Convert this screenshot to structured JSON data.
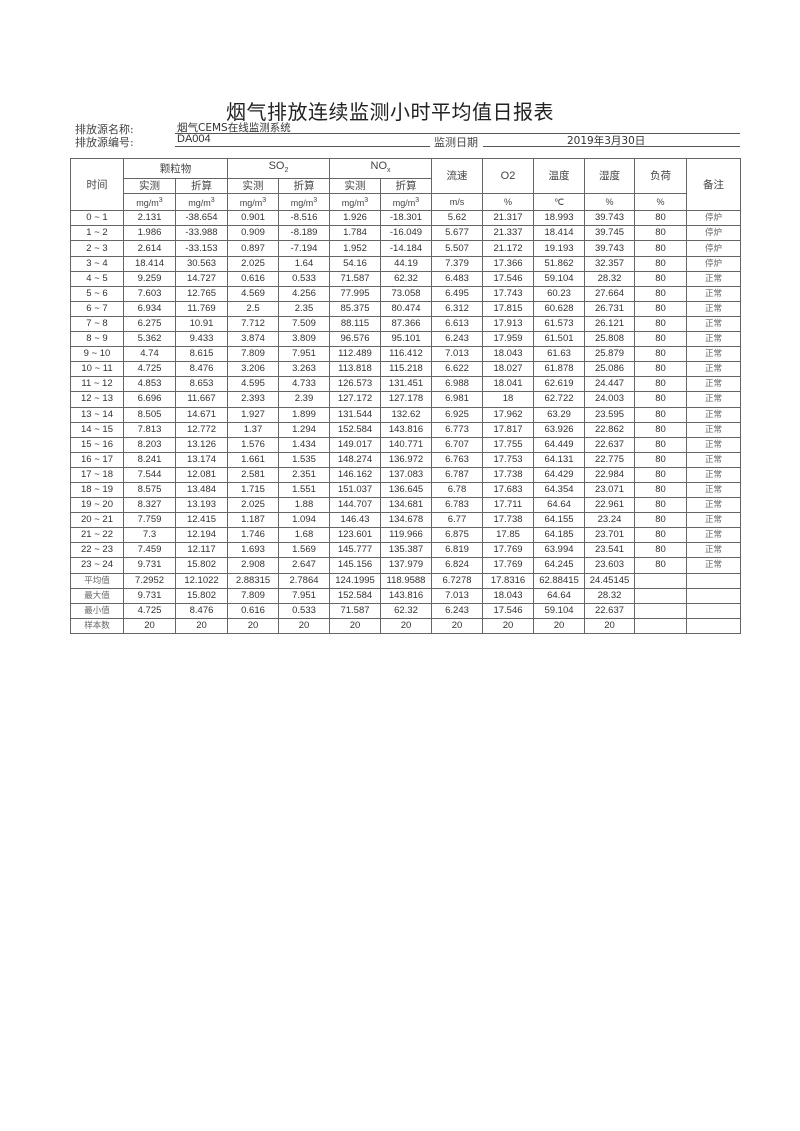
{
  "title": "烟气排放连续监测小时平均值日报表",
  "info": {
    "source_name_label": "排放源名称:",
    "source_name": "烟气CEMS在线监测系统",
    "source_id_label": "排放源编号:",
    "source_id": "DA004",
    "date_label": "监测日期",
    "date": "2019年3月30日"
  },
  "header": {
    "time": "时间",
    "particulate": "颗粒物",
    "so2": "SO",
    "so2_sub": "2",
    "nox": "NO",
    "nox_sub": "x",
    "measured": "实测",
    "converted": "折算",
    "conc_unit": "mg/m",
    "conc_unit_sup": "3",
    "flow": "流速",
    "flow_unit": "m/s",
    "o2": "O2",
    "o2_unit": "%",
    "temp": "温度",
    "temp_unit": "℃",
    "humidity": "湿度",
    "humidity_unit": "%",
    "load": "负荷",
    "load_unit": "%",
    "remark": "备注"
  },
  "rows": [
    [
      "0 ~ 1",
      "2.131",
      "-38.654",
      "0.901",
      "-8.516",
      "1.926",
      "-18.301",
      "5.62",
      "21.317",
      "18.993",
      "39.743",
      "80",
      "停炉"
    ],
    [
      "1 ~ 2",
      "1.986",
      "-33.988",
      "0.909",
      "-8.189",
      "1.784",
      "-16.049",
      "5.677",
      "21.337",
      "18.414",
      "39.745",
      "80",
      "停炉"
    ],
    [
      "2 ~ 3",
      "2.614",
      "-33.153",
      "0.897",
      "-7.194",
      "1.952",
      "-14.184",
      "5.507",
      "21.172",
      "19.193",
      "39.743",
      "80",
      "停炉"
    ],
    [
      "3 ~ 4",
      "18.414",
      "30.563",
      "2.025",
      "1.64",
      "54.16",
      "44.19",
      "7.379",
      "17.366",
      "51.862",
      "32.357",
      "80",
      "停炉"
    ],
    [
      "4 ~ 5",
      "9.259",
      "14.727",
      "0.616",
      "0.533",
      "71.587",
      "62.32",
      "6.483",
      "17.546",
      "59.104",
      "28.32",
      "80",
      "正常"
    ],
    [
      "5 ~ 6",
      "7.603",
      "12.765",
      "4.569",
      "4.256",
      "77.995",
      "73.058",
      "6.495",
      "17.743",
      "60.23",
      "27.664",
      "80",
      "正常"
    ],
    [
      "6 ~ 7",
      "6.934",
      "11.769",
      "2.5",
      "2.35",
      "85.375",
      "80.474",
      "6.312",
      "17.815",
      "60.628",
      "26.731",
      "80",
      "正常"
    ],
    [
      "7 ~ 8",
      "6.275",
      "10.91",
      "7.712",
      "7.509",
      "88.115",
      "87.366",
      "6.613",
      "17.913",
      "61.573",
      "26.121",
      "80",
      "正常"
    ],
    [
      "8 ~ 9",
      "5.362",
      "9.433",
      "3.874",
      "3.809",
      "96.576",
      "95.101",
      "6.243",
      "17.959",
      "61.501",
      "25.808",
      "80",
      "正常"
    ],
    [
      "9 ~ 10",
      "4.74",
      "8.615",
      "7.809",
      "7.951",
      "112.489",
      "116.412",
      "7.013",
      "18.043",
      "61.63",
      "25.879",
      "80",
      "正常"
    ],
    [
      "10 ~ 11",
      "4.725",
      "8.476",
      "3.206",
      "3.263",
      "113.818",
      "115.218",
      "6.622",
      "18.027",
      "61.878",
      "25.086",
      "80",
      "正常"
    ],
    [
      "11 ~ 12",
      "4.853",
      "8.653",
      "4.595",
      "4.733",
      "126.573",
      "131.451",
      "6.988",
      "18.041",
      "62.619",
      "24.447",
      "80",
      "正常"
    ],
    [
      "12 ~ 13",
      "6.696",
      "11.667",
      "2.393",
      "2.39",
      "127.172",
      "127.178",
      "6.981",
      "18",
      "62.722",
      "24.003",
      "80",
      "正常"
    ],
    [
      "13 ~ 14",
      "8.505",
      "14.671",
      "1.927",
      "1.899",
      "131.544",
      "132.62",
      "6.925",
      "17.962",
      "63.29",
      "23.595",
      "80",
      "正常"
    ],
    [
      "14 ~ 15",
      "7.813",
      "12.772",
      "1.37",
      "1.294",
      "152.584",
      "143.816",
      "6.773",
      "17.817",
      "63.926",
      "22.862",
      "80",
      "正常"
    ],
    [
      "15 ~ 16",
      "8.203",
      "13.126",
      "1.576",
      "1.434",
      "149.017",
      "140.771",
      "6.707",
      "17.755",
      "64.449",
      "22.637",
      "80",
      "正常"
    ],
    [
      "16 ~ 17",
      "8.241",
      "13.174",
      "1.661",
      "1.535",
      "148.274",
      "136.972",
      "6.763",
      "17.753",
      "64.131",
      "22.775",
      "80",
      "正常"
    ],
    [
      "17 ~ 18",
      "7.544",
      "12.081",
      "2.581",
      "2.351",
      "146.162",
      "137.083",
      "6.787",
      "17.738",
      "64.429",
      "22.984",
      "80",
      "正常"
    ],
    [
      "18 ~ 19",
      "8.575",
      "13.484",
      "1.715",
      "1.551",
      "151.037",
      "136.645",
      "6.78",
      "17.683",
      "64.354",
      "23.071",
      "80",
      "正常"
    ],
    [
      "19 ~ 20",
      "8.327",
      "13.193",
      "2.025",
      "1.88",
      "144.707",
      "134.681",
      "6.783",
      "17.711",
      "64.64",
      "22.961",
      "80",
      "正常"
    ],
    [
      "20 ~ 21",
      "7.759",
      "12.415",
      "1.187",
      "1.094",
      "146.43",
      "134.678",
      "6.77",
      "17.738",
      "64.155",
      "23.24",
      "80",
      "正常"
    ],
    [
      "21 ~ 22",
      "7.3",
      "12.194",
      "1.746",
      "1.68",
      "123.601",
      "119.966",
      "6.875",
      "17.85",
      "64.185",
      "23.701",
      "80",
      "正常"
    ],
    [
      "22 ~ 23",
      "7.459",
      "12.117",
      "1.693",
      "1.569",
      "145.777",
      "135.387",
      "6.819",
      "17.769",
      "63.994",
      "23.541",
      "80",
      "正常"
    ],
    [
      "23 ~ 24",
      "9.731",
      "15.802",
      "2.908",
      "2.647",
      "145.156",
      "137.979",
      "6.824",
      "17.769",
      "64.245",
      "23.603",
      "80",
      "正常"
    ]
  ],
  "summary": [
    [
      "平均值",
      "7.2952",
      "12.1022",
      "2.88315",
      "2.7864",
      "124.1995",
      "118.9588",
      "6.7278",
      "17.8316",
      "62.88415",
      "24.45145",
      "",
      ""
    ],
    [
      "最大值",
      "9.731",
      "15.802",
      "7.809",
      "7.951",
      "152.584",
      "143.816",
      "7.013",
      "18.043",
      "64.64",
      "28.32",
      "",
      ""
    ],
    [
      "最小值",
      "4.725",
      "8.476",
      "0.616",
      "0.533",
      "71.587",
      "62.32",
      "6.243",
      "17.546",
      "59.104",
      "22.637",
      "",
      ""
    ],
    [
      "样本数",
      "20",
      "20",
      "20",
      "20",
      "20",
      "20",
      "20",
      "20",
      "20",
      "20",
      "",
      ""
    ]
  ]
}
